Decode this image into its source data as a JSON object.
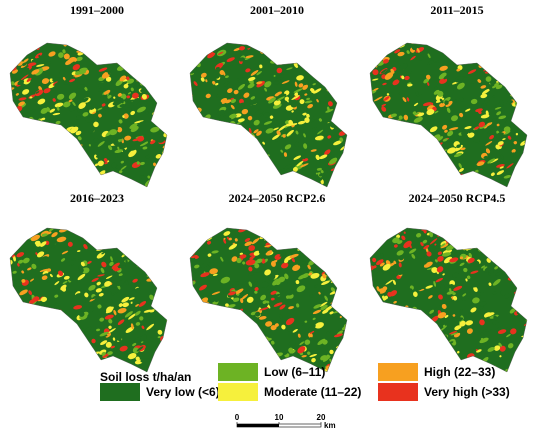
{
  "panels": [
    {
      "title": "1991–2000"
    },
    {
      "title": "2001–2010"
    },
    {
      "title": "2011–2015"
    },
    {
      "title": "2016–2023"
    },
    {
      "title": "2024–2050 RCP2.6"
    },
    {
      "title": "2024–2050 RCP4.5"
    }
  ],
  "legend": {
    "title": "Soil loss t/ha/an",
    "items": [
      {
        "label": "Very low (<6)",
        "color": "#1f6e1f"
      },
      {
        "label": "Low (6–11)",
        "color": "#6db324"
      },
      {
        "label": "Moderate (11–22)",
        "color": "#f6f03c"
      },
      {
        "label": "High (22–33)",
        "color": "#f7a020"
      },
      {
        "label": "Very high (>33)",
        "color": "#e8321e"
      }
    ]
  },
  "scale_bar": {
    "ticks": [
      0,
      10,
      20
    ],
    "unit": "km"
  }
}
